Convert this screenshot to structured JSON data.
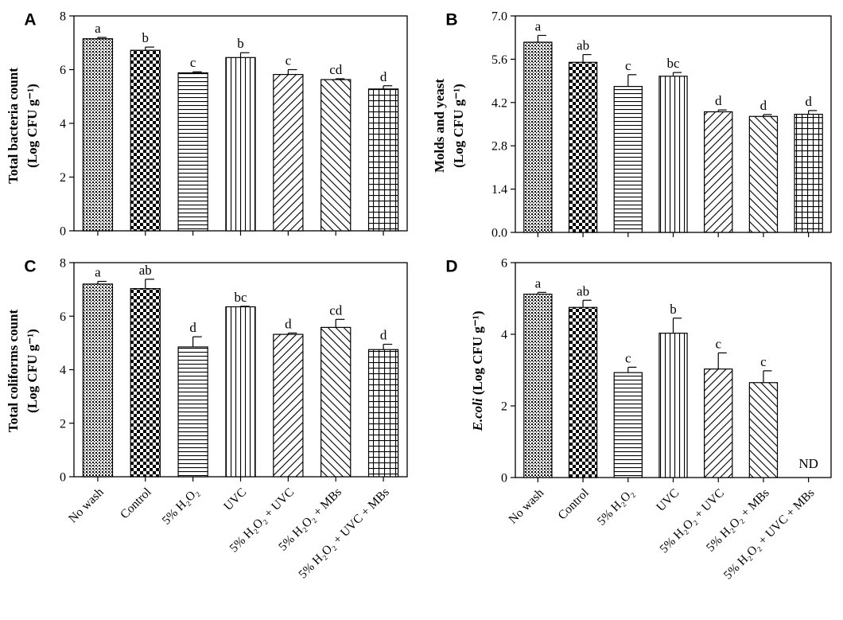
{
  "figure": {
    "categories": [
      "No wash",
      "Control",
      "5% H₂O₂",
      "UVC",
      "5% H₂O₂ + UVC",
      "5% H₂O₂ + MBs",
      "5% H₂O₂ + UVC + MBs"
    ],
    "pattern_names": [
      "dense-dots",
      "checkerboard",
      "horizontal-lines",
      "vertical-lines",
      "diagonal-right",
      "diagonal-left",
      "grid"
    ]
  },
  "chart_data": [
    {
      "panel": "A",
      "type": "bar",
      "ylabel_line1": "Total bacteria count",
      "ylabel_line2": "(Log CFU g⁻¹)",
      "ylim": [
        0,
        8
      ],
      "yticks": [
        "0",
        "2",
        "4",
        "6",
        "8"
      ],
      "values": [
        7.15,
        6.72,
        5.88,
        6.45,
        5.82,
        5.63,
        5.28
      ],
      "errors": [
        0.05,
        0.12,
        0.04,
        0.18,
        0.18,
        0.03,
        0.12
      ],
      "letters": [
        "a",
        "b",
        "c",
        "b",
        "c",
        "cd",
        "d"
      ]
    },
    {
      "panel": "B",
      "type": "bar",
      "ylabel_line1": "Molds and yeast",
      "ylabel_line2": "(Log CFU g⁻¹)",
      "ylim": [
        0,
        7
      ],
      "yticks": [
        "0.0",
        "1.4",
        "2.8",
        "4.2",
        "5.6",
        "7.0"
      ],
      "values": [
        6.15,
        5.5,
        4.72,
        5.05,
        3.9,
        3.75,
        3.82
      ],
      "errors": [
        0.22,
        0.25,
        0.38,
        0.12,
        0.06,
        0.06,
        0.12
      ],
      "letters": [
        "a",
        "ab",
        "c",
        "bc",
        "d",
        "d",
        "d"
      ]
    },
    {
      "panel": "C",
      "type": "bar",
      "ylabel_line1": "Total coliforms count",
      "ylabel_line2": "(Log CFU g⁻¹)",
      "ylim": [
        0,
        8
      ],
      "yticks": [
        "0",
        "2",
        "4",
        "6",
        "8"
      ],
      "values": [
        7.2,
        7.03,
        4.85,
        6.35,
        5.32,
        5.58,
        4.75
      ],
      "errors": [
        0.1,
        0.35,
        0.38,
        0.02,
        0.05,
        0.3,
        0.2
      ],
      "letters": [
        "a",
        "ab",
        "d",
        "bc",
        "d",
        "cd",
        "d"
      ]
    },
    {
      "panel": "D",
      "type": "bar",
      "ylabel_italic": "E.coli",
      "ylabel_rest": " (Log CFU g⁻¹)",
      "ylim": [
        0,
        6
      ],
      "yticks": [
        "0",
        "2",
        "4",
        "6"
      ],
      "values": [
        5.12,
        4.75,
        2.93,
        4.03,
        3.03,
        2.65,
        null
      ],
      "errors": [
        0.05,
        0.2,
        0.15,
        0.42,
        0.45,
        0.33,
        null
      ],
      "letters": [
        "a",
        "ab",
        "c",
        "b",
        "c",
        "c",
        ""
      ],
      "nd_label": "ND"
    }
  ]
}
